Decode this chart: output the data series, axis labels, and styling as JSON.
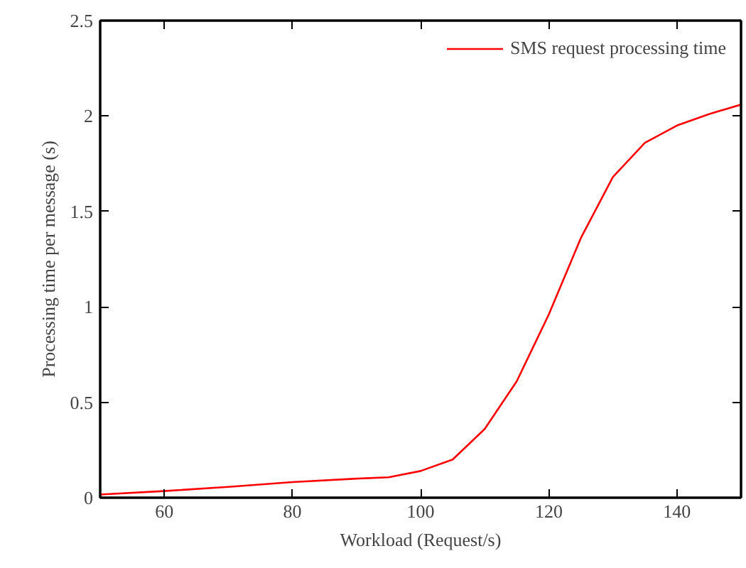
{
  "chart_data": {
    "type": "line",
    "xlabel": "Workload (Request/s)",
    "ylabel": "Processing time per message (s)",
    "x": [
      50,
      60,
      70,
      80,
      90,
      95,
      100,
      105,
      110,
      115,
      120,
      125,
      130,
      135,
      140,
      145,
      150
    ],
    "series": [
      {
        "name": "SMS request processing time",
        "color": "#ff0000",
        "values": [
          0.017,
          0.035,
          0.057,
          0.082,
          0.1,
          0.107,
          0.14,
          0.2,
          0.36,
          0.61,
          0.96,
          1.36,
          1.68,
          1.86,
          1.95,
          2.01,
          2.06
        ]
      }
    ],
    "xlim": [
      50,
      150
    ],
    "xticks": [
      60,
      80,
      100,
      120,
      140
    ],
    "ylim": [
      0,
      2.5
    ],
    "yticks": [
      0,
      0.5,
      1,
      1.5,
      2,
      2.5
    ],
    "legend": "top right",
    "grid": false,
    "marker": "none",
    "line_style": "solid"
  }
}
